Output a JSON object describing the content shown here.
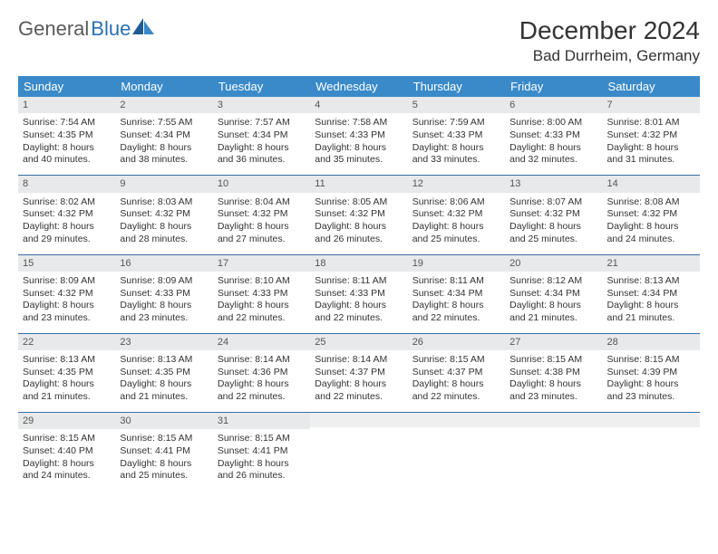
{
  "logo": {
    "text1": "General",
    "text2": "Blue"
  },
  "colors": {
    "header_bg": "#3a8ac9",
    "header_text": "#ffffff",
    "daynum_bg": "#e8e9ea",
    "row_border": "#3a6fa5",
    "logo_gray": "#5a5a5a",
    "logo_blue": "#2a6fb5",
    "body_text": "#333333"
  },
  "title": "December 2024",
  "location": "Bad Durrheim, Germany",
  "weekday_labels": [
    "Sunday",
    "Monday",
    "Tuesday",
    "Wednesday",
    "Thursday",
    "Friday",
    "Saturday"
  ],
  "weeks": [
    [
      {
        "day": "1",
        "sunrise": "Sunrise: 7:54 AM",
        "sunset": "Sunset: 4:35 PM",
        "daylight": "Daylight: 8 hours and 40 minutes."
      },
      {
        "day": "2",
        "sunrise": "Sunrise: 7:55 AM",
        "sunset": "Sunset: 4:34 PM",
        "daylight": "Daylight: 8 hours and 38 minutes."
      },
      {
        "day": "3",
        "sunrise": "Sunrise: 7:57 AM",
        "sunset": "Sunset: 4:34 PM",
        "daylight": "Daylight: 8 hours and 36 minutes."
      },
      {
        "day": "4",
        "sunrise": "Sunrise: 7:58 AM",
        "sunset": "Sunset: 4:33 PM",
        "daylight": "Daylight: 8 hours and 35 minutes."
      },
      {
        "day": "5",
        "sunrise": "Sunrise: 7:59 AM",
        "sunset": "Sunset: 4:33 PM",
        "daylight": "Daylight: 8 hours and 33 minutes."
      },
      {
        "day": "6",
        "sunrise": "Sunrise: 8:00 AM",
        "sunset": "Sunset: 4:33 PM",
        "daylight": "Daylight: 8 hours and 32 minutes."
      },
      {
        "day": "7",
        "sunrise": "Sunrise: 8:01 AM",
        "sunset": "Sunset: 4:32 PM",
        "daylight": "Daylight: 8 hours and 31 minutes."
      }
    ],
    [
      {
        "day": "8",
        "sunrise": "Sunrise: 8:02 AM",
        "sunset": "Sunset: 4:32 PM",
        "daylight": "Daylight: 8 hours and 29 minutes."
      },
      {
        "day": "9",
        "sunrise": "Sunrise: 8:03 AM",
        "sunset": "Sunset: 4:32 PM",
        "daylight": "Daylight: 8 hours and 28 minutes."
      },
      {
        "day": "10",
        "sunrise": "Sunrise: 8:04 AM",
        "sunset": "Sunset: 4:32 PM",
        "daylight": "Daylight: 8 hours and 27 minutes."
      },
      {
        "day": "11",
        "sunrise": "Sunrise: 8:05 AM",
        "sunset": "Sunset: 4:32 PM",
        "daylight": "Daylight: 8 hours and 26 minutes."
      },
      {
        "day": "12",
        "sunrise": "Sunrise: 8:06 AM",
        "sunset": "Sunset: 4:32 PM",
        "daylight": "Daylight: 8 hours and 25 minutes."
      },
      {
        "day": "13",
        "sunrise": "Sunrise: 8:07 AM",
        "sunset": "Sunset: 4:32 PM",
        "daylight": "Daylight: 8 hours and 25 minutes."
      },
      {
        "day": "14",
        "sunrise": "Sunrise: 8:08 AM",
        "sunset": "Sunset: 4:32 PM",
        "daylight": "Daylight: 8 hours and 24 minutes."
      }
    ],
    [
      {
        "day": "15",
        "sunrise": "Sunrise: 8:09 AM",
        "sunset": "Sunset: 4:32 PM",
        "daylight": "Daylight: 8 hours and 23 minutes."
      },
      {
        "day": "16",
        "sunrise": "Sunrise: 8:09 AM",
        "sunset": "Sunset: 4:33 PM",
        "daylight": "Daylight: 8 hours and 23 minutes."
      },
      {
        "day": "17",
        "sunrise": "Sunrise: 8:10 AM",
        "sunset": "Sunset: 4:33 PM",
        "daylight": "Daylight: 8 hours and 22 minutes."
      },
      {
        "day": "18",
        "sunrise": "Sunrise: 8:11 AM",
        "sunset": "Sunset: 4:33 PM",
        "daylight": "Daylight: 8 hours and 22 minutes."
      },
      {
        "day": "19",
        "sunrise": "Sunrise: 8:11 AM",
        "sunset": "Sunset: 4:34 PM",
        "daylight": "Daylight: 8 hours and 22 minutes."
      },
      {
        "day": "20",
        "sunrise": "Sunrise: 8:12 AM",
        "sunset": "Sunset: 4:34 PM",
        "daylight": "Daylight: 8 hours and 21 minutes."
      },
      {
        "day": "21",
        "sunrise": "Sunrise: 8:13 AM",
        "sunset": "Sunset: 4:34 PM",
        "daylight": "Daylight: 8 hours and 21 minutes."
      }
    ],
    [
      {
        "day": "22",
        "sunrise": "Sunrise: 8:13 AM",
        "sunset": "Sunset: 4:35 PM",
        "daylight": "Daylight: 8 hours and 21 minutes."
      },
      {
        "day": "23",
        "sunrise": "Sunrise: 8:13 AM",
        "sunset": "Sunset: 4:35 PM",
        "daylight": "Daylight: 8 hours and 21 minutes."
      },
      {
        "day": "24",
        "sunrise": "Sunrise: 8:14 AM",
        "sunset": "Sunset: 4:36 PM",
        "daylight": "Daylight: 8 hours and 22 minutes."
      },
      {
        "day": "25",
        "sunrise": "Sunrise: 8:14 AM",
        "sunset": "Sunset: 4:37 PM",
        "daylight": "Daylight: 8 hours and 22 minutes."
      },
      {
        "day": "26",
        "sunrise": "Sunrise: 8:15 AM",
        "sunset": "Sunset: 4:37 PM",
        "daylight": "Daylight: 8 hours and 22 minutes."
      },
      {
        "day": "27",
        "sunrise": "Sunrise: 8:15 AM",
        "sunset": "Sunset: 4:38 PM",
        "daylight": "Daylight: 8 hours and 23 minutes."
      },
      {
        "day": "28",
        "sunrise": "Sunrise: 8:15 AM",
        "sunset": "Sunset: 4:39 PM",
        "daylight": "Daylight: 8 hours and 23 minutes."
      }
    ],
    [
      {
        "day": "29",
        "sunrise": "Sunrise: 8:15 AM",
        "sunset": "Sunset: 4:40 PM",
        "daylight": "Daylight: 8 hours and 24 minutes."
      },
      {
        "day": "30",
        "sunrise": "Sunrise: 8:15 AM",
        "sunset": "Sunset: 4:41 PM",
        "daylight": "Daylight: 8 hours and 25 minutes."
      },
      {
        "day": "31",
        "sunrise": "Sunrise: 8:15 AM",
        "sunset": "Sunset: 4:41 PM",
        "daylight": "Daylight: 8 hours and 26 minutes."
      },
      {
        "empty": true
      },
      {
        "empty": true
      },
      {
        "empty": true
      },
      {
        "empty": true
      }
    ]
  ]
}
